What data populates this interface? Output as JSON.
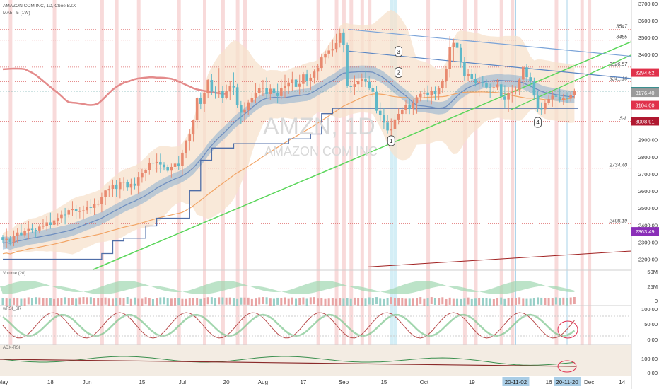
{
  "header": {
    "symbol_line": "AMAZON COM INC, 1D, Cboe BZX",
    "indicator_line": "MA5 - 5 (1W)"
  },
  "watermark": {
    "symbol": "AMZN, 1D",
    "company": "AMAZON COM INC"
  },
  "colors": {
    "up": "#e8896f",
    "down": "#5fb8c8",
    "band": "#f7e2cc",
    "blue_ma": "#8aaed0",
    "orange_ma": "#f2a465",
    "trend_green": "#5ad65a",
    "trend_blue": "#5b86c4",
    "red_line": "#d25a5a",
    "stair": "#4f6ea8",
    "pink_bar": "#f8dada",
    "cyan_bar": "#d4eef6"
  },
  "chart_data": {
    "type": "candlestick",
    "yaxis": {
      "ticks": [
        "3700.00",
        "3600.00",
        "3500.00",
        "3400.00",
        "3300.00",
        "3200.00",
        "3100.00",
        "3000.00",
        "2900.00",
        "2800.00",
        "2700.00",
        "2600.00",
        "2500.00",
        "2400.00",
        "2300.00",
        "2200.00"
      ],
      "ticks_values": [
        3700,
        3600,
        3500,
        3400,
        3300,
        3200,
        3100,
        3000,
        2900,
        2800,
        2700,
        2600,
        2500,
        2400,
        2300,
        2200
      ],
      "ylim": [
        2140,
        3720
      ]
    },
    "xaxis": {
      "labels": [
        {
          "label": "May",
          "i": 0
        },
        {
          "label": "18",
          "i": 13
        },
        {
          "label": "Jun",
          "i": 23
        },
        {
          "label": "15",
          "i": 38
        },
        {
          "label": "Jul",
          "i": 49
        },
        {
          "label": "20",
          "i": 61
        },
        {
          "label": "Aug",
          "i": 71
        },
        {
          "label": "17",
          "i": 82
        },
        {
          "label": "Sep",
          "i": 93
        },
        {
          "label": "15",
          "i": 104
        },
        {
          "label": "Oct",
          "i": 115
        },
        {
          "label": "19",
          "i": 128
        },
        {
          "label": "16",
          "i": 149
        },
        {
          "label": "Dec",
          "i": 160
        },
        {
          "label": "14",
          "i": 169
        }
      ],
      "highlights": [
        "20-11-02",
        "20-11-20"
      ]
    },
    "candles_ohlc": [
      [
        2330.0,
        2342.72,
        2296.15,
        2312.54
      ],
      [
        2314.73,
        2378.85,
        2268.73,
        2319.83
      ],
      [
        2320.15,
        2336.06,
        2279.01,
        2300.07
      ],
      [
        2299.46,
        2369.32,
        2276.41,
        2336.84
      ],
      [
        2338.04,
        2383.57,
        2296.24,
        2356.74
      ],
      [
        2356.68,
        2404.89,
        2338.76,
        2341.1
      ],
      [
        2341.27,
        2382.64,
        2327.67,
        2366.2
      ],
      [
        2365.96,
        2426.27,
        2316.91,
        2377.87
      ],
      [
        2378.53,
        2406.53,
        2353.91,
        2372.05
      ],
      [
        2372.26,
        2384.68,
        2328.88,
        2368.39
      ],
      [
        2368.63,
        2404.34,
        2351.04,
        2391.45
      ],
      [
        2391.22,
        2436.18,
        2375.54,
        2396.56
      ],
      [
        2396.6,
        2452.31,
        2368.27,
        2415.9
      ],
      [
        2415.84,
        2473.18,
        2378.09,
        2401.25
      ],
      [
        2401.73,
        2438.48,
        2388.2,
        2427.72
      ],
      [
        2426.67,
        2469.9,
        2398.6,
        2442.13
      ],
      [
        2441.42,
        2486.2,
        2413.51,
        2460.87
      ],
      [
        2461.55,
        2501.22,
        2404.17,
        2461.04
      ],
      [
        2461.2,
        2498.18,
        2444.69,
        2487.8
      ],
      [
        2487.95,
        2541.15,
        2451.43,
        2494.29
      ],
      [
        2494.57,
        2517.76,
        2437.26,
        2481.27
      ],
      [
        2481.25,
        2508.33,
        2439.98,
        2481.7
      ],
      [
        2481.34,
        2514.38,
        2432.73,
        2486.47
      ],
      [
        2487.0,
        2542.74,
        2466.37,
        2505.76
      ],
      [
        2505.66,
        2550.15,
        2464.88,
        2501.38
      ],
      [
        2501.23,
        2556.95,
        2459.41,
        2523.75
      ],
      [
        2523.28,
        2545.28,
        2510.97,
        2524.24
      ],
      [
        2524.43,
        2589.82,
        2474.87,
        2563.48
      ],
      [
        2563.01,
        2608.46,
        2517.34,
        2603.37
      ],
      [
        2603.78,
        2631.17,
        2563.29,
        2612.5
      ],
      [
        2612.64,
        2667.64,
        2565.64,
        2637.63
      ],
      [
        2637.97,
        2663.37,
        2563.84,
        2612.31
      ],
      [
        2611.3,
        2676.74,
        2557.25,
        2649.59
      ],
      [
        2649.29,
        2682.35,
        2601.37,
        2653.67
      ],
      [
        2653.95,
        2667.69,
        2600.84,
        2620.03
      ],
      [
        2619.72,
        2672.84,
        2576.85,
        2642.13
      ],
      [
        2642.59,
        2681.22,
        2610.06,
        2631.05
      ],
      [
        2630.36,
        2712.13,
        2584.56,
        2682.51
      ],
      [
        2681.88,
        2729.76,
        2648.2,
        2706.13
      ],
      [
        2705.97,
        2730.17,
        2658.16,
        2725.06
      ],
      [
        2724.57,
        2793.35,
        2697.14,
        2766.31
      ],
      [
        2765.5,
        2788.16,
        2714.08,
        2761.89
      ],
      [
        2762.41,
        2819.41,
        2709.6,
        2770.71
      ],
      [
        2770.21,
        2818.85,
        2708.48,
        2755.5
      ],
      [
        2754.96,
        2769.66,
        2720.29,
        2740.16
      ],
      [
        2741.07,
        2755.05,
        2710.11,
        2718.83
      ],
      [
        2719.57,
        2760.89,
        2680.33,
        2741.45
      ],
      [
        2741.47,
        2770.29,
        2704.8,
        2760.69
      ],
      [
        2760.59,
        2803.68,
        2724.63,
        2745.29
      ],
      [
        2745.65,
        2841.4,
        2695.86,
        2824.56
      ],
      [
        2823.45,
        2899.45,
        2790.8,
        2894.06
      ],
      [
        2893.11,
        2961.04,
        2838.37,
        2931.68
      ],
      [
        2931.74,
        3020.31,
        2888.74,
        3015.3
      ],
      [
        3014.66,
        3152.36,
        2967.19,
        3144.69
      ],
      [
        3143.84,
        3178.62,
        3080.99,
        3110.51
      ],
      [
        3110.74,
        3184.26,
        3064.47,
        3173.11
      ],
      [
        3173.01,
        3257.99,
        3143.46,
        3251.07
      ],
      [
        3251.32,
        3285.49,
        3161.07,
        3182.08
      ],
      [
        3182.34,
        3213.43,
        3141.02,
        3178.66
      ],
      [
        3179.6,
        3321.33,
        3143.86,
        3184.94
      ],
      [
        3185.38,
        3217.33,
        3117.48,
        3145.25
      ],
      [
        3145.19,
        3224.01,
        3137.88,
        3184.77
      ],
      [
        3183.72,
        3244.65,
        3133.66,
        3215.97
      ],
      [
        3215.95,
        3295.64,
        3161.59,
        3207.37
      ],
      [
        3208.39,
        3227.78,
        3086.43,
        3104.9
      ],
      [
        3104.75,
        3127.56,
        2994.1,
        3058.86
      ],
      [
        3059.81,
        3120.58,
        3006.41,
        3078.29
      ],
      [
        3077.34,
        3136.01,
        3047.78,
        3120.04
      ],
      [
        3121.08,
        3177.86,
        3075.95,
        3144.62
      ],
      [
        3143.94,
        3234.37,
        3113.55,
        3174.93
      ],
      [
        3175.35,
        3227.55,
        3139.94,
        3201.89
      ],
      [
        3201.96,
        3251.77,
        3156.24,
        3203.81
      ],
      [
        3204.25,
        3266.55,
        3142.93,
        3168.68
      ],
      [
        3168.42,
        3225.9,
        3133.54,
        3199.79
      ],
      [
        3200.12,
        3227.23,
        3153.12,
        3174.97
      ],
      [
        3175.33,
        3228.74,
        3113.64,
        3156.5
      ],
      [
        3156.59,
        3253.55,
        3138.28,
        3201.54
      ],
      [
        3201.79,
        3282.11,
        3147.26,
        3214.27
      ],
      [
        3213.27,
        3263.03,
        3168.38,
        3235.8
      ],
      [
        3234.89,
        3298.44,
        3185.64,
        3253.84
      ],
      [
        3253.72,
        3277.33,
        3200.2,
        3210.21
      ],
      [
        3210.91,
        3281.86,
        3165.99,
        3227.96
      ],
      [
        3227.93,
        3297.39,
        3179.78,
        3283.95
      ],
      [
        3283.99,
        3309.89,
        3213.52,
        3246.31
      ],
      [
        3246.22,
        3286.16,
        3192.72,
        3264.17
      ],
      [
        3264.33,
        3312.56,
        3229.01,
        3300.31
      ],
      [
        3299.8,
        3343.01,
        3250.1,
        3322.19
      ],
      [
        3321.65,
        3405.6,
        3302.35,
        3383.69
      ],
      [
        3383.07,
        3422.71,
        3347.27,
        3404.39
      ],
      [
        3405.39,
        3454.37,
        3378.62,
        3423.77
      ],
      [
        3424.16,
        3489.48,
        3389.38,
        3433.2
      ],
      [
        3433.39,
        3522.01,
        3411.68,
        3467.47
      ],
      [
        3468.03,
        3551.14,
        3440.96,
        3526.84
      ],
      [
        3529.88,
        3550.47,
        3412.46,
        3455.33
      ],
      [
        3455.51,
        3468.88,
        3206.09,
        3217.97
      ],
      [
        3218.24,
        3257.32,
        3174.62,
        3210.18
      ],
      [
        3209.92,
        3278.45,
        3160.36,
        3226.06
      ],
      [
        3225.73,
        3289.13,
        3182.31,
        3244.34
      ],
      [
        3244.45,
        3290.07,
        3209.86,
        3255.51
      ],
      [
        3255.39,
        3306.37,
        3209.41,
        3240.86
      ],
      [
        3240.56,
        3272.99,
        3192.74,
        3201.89
      ],
      [
        3201.96,
        3222.36,
        3151.82,
        3181.57
      ],
      [
        3181.55,
        3217.34,
        3054.98,
        3070.48
      ],
      [
        3070.37,
        3120.3,
        3007.13,
        3044.51
      ],
      [
        3044.04,
        3087.62,
        2962.99,
        3001.04
      ],
      [
        3001.43,
        3047.49,
        2937.58,
        2955.37
      ],
      [
        2955.42,
        3025.62,
        2871.16,
        2963.62
      ],
      [
        2964.92,
        3042.77,
        2947.99,
        3019.87
      ],
      [
        3019.52,
        3084.6,
        2988.97,
        3052.41
      ],
      [
        3051.96,
        3092.26,
        3002.29,
        3077.62
      ],
      [
        3076.86,
        3135.77,
        3051.92,
        3103.64
      ],
      [
        3103.58,
        3141.91,
        3051.37,
        3081.19
      ],
      [
        3081.54,
        3137.57,
        3048.34,
        3114.38
      ],
      [
        3114.07,
        3163.29,
        3053.34,
        3150.09
      ],
      [
        3149.93,
        3186.02,
        3125.49,
        3169.69
      ],
      [
        3170.05,
        3200.41,
        3143.04,
        3177.25
      ],
      [
        3177.94,
        3219.49,
        3123.21,
        3160.14
      ],
      [
        3159.24,
        3210.71,
        3108.83,
        3185.98
      ],
      [
        3186.11,
        3212.53,
        3130.65,
        3168.37
      ],
      [
        3168.03,
        3218.3,
        3132.35,
        3204.66
      ],
      [
        3204.69,
        3257.15,
        3176.42,
        3242.75
      ],
      [
        3242.78,
        3332.96,
        3203.61,
        3314.47
      ],
      [
        3315.47,
        3508.21,
        3266.2,
        3443.34
      ],
      [
        3443.08,
        3493.72,
        3358.73,
        3468.45
      ],
      [
        3468.53,
        3505.96,
        3410.04,
        3439.59
      ],
      [
        3439.34,
        3463.09,
        3323.04,
        3359.19
      ],
      [
        3359.21,
        3384.34,
        3247.57,
        3272.31
      ],
      [
        3272.34,
        3316.17,
        3243.06,
        3287.23
      ],
      [
        3287.36,
        3314.23,
        3239.65,
        3255.79
      ],
      [
        3256.02,
        3289.6,
        3212.94,
        3230.74
      ],
      [
        3230.13,
        3278.7,
        3154.49,
        3238.0
      ],
      [
        3239.15,
        3273.7,
        3210.89,
        3231.4
      ],
      [
        3231.21,
        3253.9,
        3198.86,
        3207.56
      ],
      [
        3207.74,
        3229.18,
        3145.19,
        3201.94
      ],
      [
        3202.49,
        3256.91,
        3173.01,
        3208.8
      ],
      [
        3207.98,
        3255.94,
        3193.07,
        3224.65
      ],
      [
        3225.62,
        3244.85,
        3134.43,
        3154.49
      ],
      [
        3154.69,
        3220.79,
        3090.17,
        3136.4
      ],
      [
        3137.0,
        3210.08,
        3063.31,
        3174.4
      ],
      [
        3174.52,
        3222.11,
        3119.84,
        3183.15
      ],
      [
        3183.52,
        3212.91,
        3166.53,
        3192.08
      ],
      [
        3191.93,
        3263.07,
        3163.85,
        3253.36
      ],
      [
        3253.42,
        3331.99,
        3218.68,
        3325.46
      ],
      [
        3325.17,
        3343.89,
        3239.06,
        3267.36
      ],
      [
        3267.39,
        3294.47,
        3208.2,
        3242.4
      ],
      [
        3242.47,
        3265.09,
        3136.1,
        3159.52
      ],
      [
        3159.22,
        3188.09,
        3063.54,
        3085.44
      ],
      [
        3084.79,
        3119.75,
        3044.82,
        3079.47
      ],
      [
        3080.16,
        3132.84,
        3051.65,
        3117.32
      ],
      [
        3117.03,
        3161.04,
        3102.44,
        3139.46
      ],
      [
        3138.74,
        3190.39,
        3094.24,
        3158.54
      ],
      [
        3158.86,
        3205.18,
        3095.22,
        3152.35
      ],
      [
        3152.06,
        3205.79,
        3120.11,
        3133.87
      ],
      [
        3133.59,
        3169.38,
        3106.28,
        3145.46
      ],
      [
        3144.9,
        3179.51,
        3114.77,
        3141.44
      ],
      [
        3141.95,
        3183.43,
        3124.51,
        3160.76
      ],
      [
        3161.8,
        3199.61,
        3141.87,
        3185.07
      ]
    ],
    "horizontal_levels": [
      {
        "value": 3547,
        "label": "3547"
      },
      {
        "value": 3485,
        "label": "3485"
      },
      {
        "value": 3326.57,
        "label": "3326.57"
      },
      {
        "value": 3241.16,
        "label": "3241.16"
      },
      {
        "value": 3008.91,
        "label": "S-L"
      },
      {
        "value": 2734.4,
        "label": "2734.40"
      },
      {
        "value": 2408.19,
        "label": "2408.19"
      }
    ],
    "price_tags": [
      {
        "value": 3294.62,
        "label": "3294.62",
        "color": "#e0314b"
      },
      {
        "value": 3185.07,
        "label": "3185.07",
        "color": "#3b8f8f"
      },
      {
        "value": 3176.4,
        "label": "3176.40",
        "color": "#9a9a9a"
      },
      {
        "value": 3104.0,
        "label": "3104.00",
        "color": "#e0314b"
      },
      {
        "value": 3008.91,
        "label": "3008.91",
        "color": "#b01830"
      },
      {
        "value": 2363.49,
        "label": "2363.49",
        "color": "#8a2fb8"
      }
    ],
    "wave_labels": [
      {
        "label": "1",
        "i": 106,
        "value": 2895
      },
      {
        "label": "2",
        "i": 108,
        "value": 3295
      },
      {
        "label": "3",
        "i": 108,
        "value": 3418
      },
      {
        "label": "4",
        "i": 146,
        "value": 3002
      }
    ],
    "panels": [
      {
        "name": "Volume (20)",
        "ticks": [
          "50M",
          "25M",
          "0"
        ]
      },
      {
        "name": "wRSI_SR",
        "ticks": [
          "100.00",
          "50.00",
          "0.00"
        ]
      },
      {
        "name": "ADX-RSI",
        "ticks": [
          "100.00",
          "0.00"
        ]
      }
    ]
  }
}
